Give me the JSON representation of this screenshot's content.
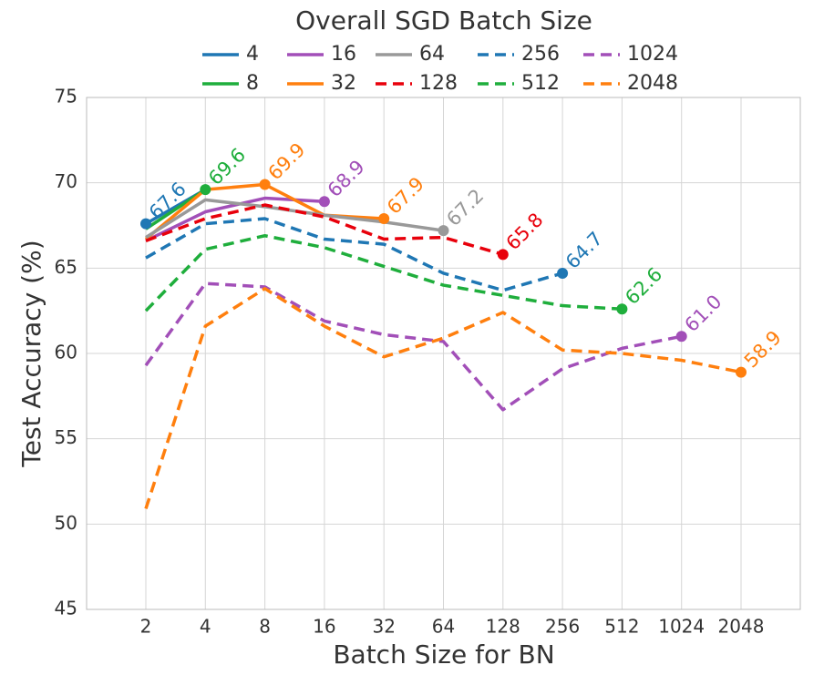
{
  "chart_data": {
    "type": "line",
    "title": "Overall SGD Batch Size",
    "x_label": "Batch Size for BN",
    "y_label": "Test Accuracy (%)",
    "categories": [
      "2",
      "4",
      "8",
      "16",
      "32",
      "64",
      "128",
      "256",
      "512",
      "1024",
      "2048"
    ],
    "ylim": [
      45,
      75
    ],
    "yticks": [
      45,
      50,
      55,
      60,
      65,
      70,
      75
    ],
    "grid": true,
    "legend": "top",
    "series": [
      {
        "name": "4",
        "color": "#1f77b4",
        "linestyle": "solid",
        "values": [
          67.6,
          69.6,
          null,
          null,
          null,
          null,
          null,
          null,
          null,
          null,
          null
        ],
        "value_labels": [
          "67.6",
          null,
          null,
          null,
          null,
          null,
          null,
          null,
          null,
          null,
          null
        ]
      },
      {
        "name": "8",
        "color": "#1fae3c",
        "linestyle": "solid",
        "values": [
          67.3,
          69.6,
          null,
          null,
          null,
          null,
          null,
          null,
          null,
          null,
          null
        ],
        "value_labels": [
          null,
          "69.6",
          null,
          null,
          null,
          null,
          null,
          null,
          null,
          null,
          null
        ]
      },
      {
        "name": "16",
        "color": "#a24fb8",
        "linestyle": "solid",
        "values": [
          66.6,
          68.3,
          69.1,
          68.9,
          null,
          null,
          null,
          null,
          null,
          null,
          null
        ],
        "value_labels": [
          null,
          null,
          null,
          "68.9",
          null,
          null,
          null,
          null,
          null,
          null,
          null
        ]
      },
      {
        "name": "32",
        "color": "#ff7f0e",
        "linestyle": "solid",
        "values": [
          66.7,
          69.6,
          69.9,
          68.1,
          67.9,
          null,
          null,
          null,
          null,
          null,
          null
        ],
        "value_labels": [
          null,
          null,
          "69.9",
          null,
          "67.9",
          null,
          null,
          null,
          null,
          null,
          null
        ]
      },
      {
        "name": "64",
        "color": "#999999",
        "linestyle": "solid",
        "values": [
          66.8,
          69.0,
          68.6,
          68.1,
          67.7,
          67.2,
          null,
          null,
          null,
          null,
          null
        ],
        "value_labels": [
          null,
          null,
          null,
          null,
          null,
          "67.2",
          null,
          null,
          null,
          null,
          null
        ]
      },
      {
        "name": "128",
        "color": "#e8000b",
        "linestyle": "dashed",
        "values": [
          66.6,
          67.9,
          68.7,
          68.0,
          66.7,
          66.8,
          65.8,
          null,
          null,
          null,
          null
        ],
        "value_labels": [
          null,
          null,
          null,
          null,
          null,
          null,
          "65.8",
          null,
          null,
          null,
          null
        ]
      },
      {
        "name": "256",
        "color": "#1f77b4",
        "linestyle": "dashed",
        "values": [
          65.6,
          67.6,
          67.9,
          66.7,
          66.4,
          64.7,
          63.7,
          64.7,
          null,
          null,
          null
        ],
        "value_labels": [
          null,
          null,
          null,
          null,
          null,
          null,
          null,
          "64.7",
          null,
          null,
          null
        ]
      },
      {
        "name": "512",
        "color": "#1fae3c",
        "linestyle": "dashed",
        "values": [
          62.5,
          66.1,
          66.9,
          66.2,
          65.1,
          64.0,
          63.4,
          62.8,
          62.6,
          null,
          null
        ],
        "value_labels": [
          null,
          null,
          null,
          null,
          null,
          null,
          null,
          null,
          "62.6",
          null,
          null
        ]
      },
      {
        "name": "1024",
        "color": "#a24fb8",
        "linestyle": "dashed",
        "values": [
          59.3,
          64.1,
          63.9,
          61.9,
          61.1,
          60.7,
          56.7,
          59.1,
          60.3,
          61.0,
          null
        ],
        "value_labels": [
          null,
          null,
          null,
          null,
          null,
          null,
          null,
          null,
          null,
          "61.0",
          null
        ]
      },
      {
        "name": "2048",
        "color": "#ff7f0e",
        "linestyle": "dashed",
        "values": [
          50.9,
          61.6,
          63.8,
          61.6,
          59.8,
          60.9,
          62.4,
          60.2,
          60.0,
          59.6,
          58.9
        ],
        "value_labels": [
          null,
          null,
          null,
          null,
          null,
          null,
          null,
          null,
          null,
          null,
          "58.9"
        ]
      }
    ]
  }
}
